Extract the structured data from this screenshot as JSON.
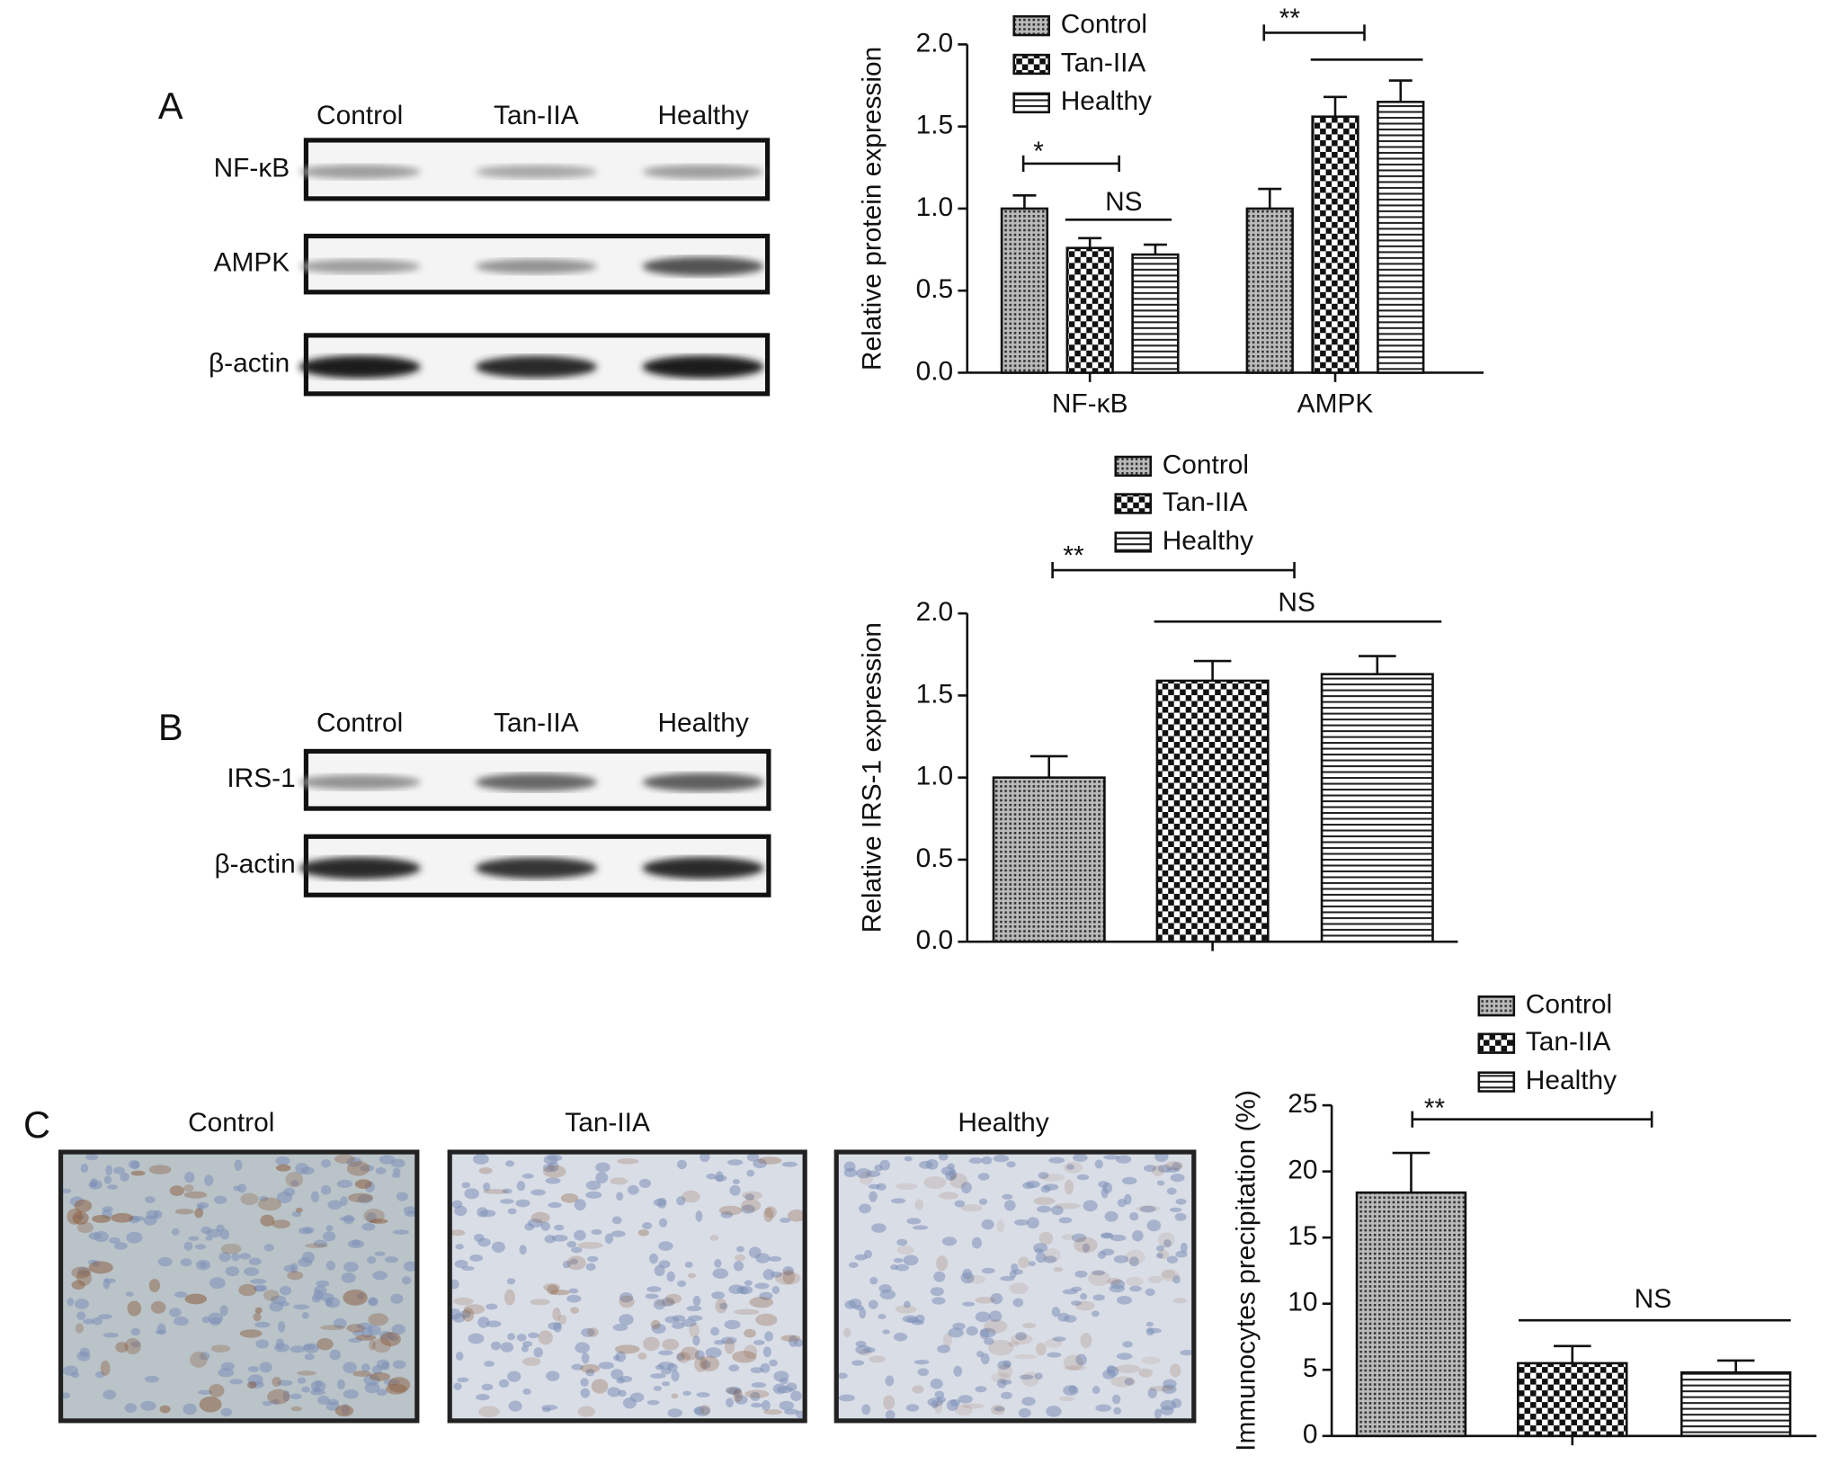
{
  "blots": [
    {
      "panel": "A",
      "lanes": [
        "Control",
        "Tan-IIA",
        "Healthy"
      ],
      "rows": [
        "NF-κB",
        "AMPK",
        "β-actin"
      ]
    },
    {
      "panel": "B",
      "lanes": [
        "Control",
        "Tan-IIA",
        "Healthy"
      ],
      "rows": [
        "IRS-1",
        "β-actin"
      ]
    }
  ],
  "histology": {
    "panel": "C",
    "images": [
      "Control",
      "Tan-IIA",
      "Healthy"
    ]
  },
  "chart_data": [
    {
      "type": "bar",
      "y_label": "Relative protein expression",
      "categories": [
        "NF-κB",
        "AMPK"
      ],
      "series": [
        {
          "name": "Control",
          "pattern": "dots",
          "values": [
            1.0,
            1.0
          ],
          "errors": [
            0.08,
            0.12
          ]
        },
        {
          "name": "Tan-IIA",
          "pattern": "checker",
          "values": [
            0.76,
            1.56
          ],
          "errors": [
            0.06,
            0.12
          ]
        },
        {
          "name": "Healthy",
          "pattern": "lines",
          "values": [
            0.72,
            1.65
          ],
          "errors": [
            0.06,
            0.13
          ]
        }
      ],
      "ylim": [
        0,
        2
      ],
      "yticks": [
        {
          "value": 0,
          "label": "0.0"
        },
        {
          "value": 0.5,
          "label": "0.5"
        },
        {
          "value": 1,
          "label": "1.0"
        },
        {
          "value": 1.5,
          "label": "1.5"
        },
        {
          "value": 2,
          "label": "2.0"
        }
      ],
      "annotations": [
        "*",
        "NS",
        "**"
      ]
    },
    {
      "type": "bar",
      "y_label": "Relative IRS-1 expression",
      "categories": [
        null
      ],
      "series": [
        {
          "name": "Control",
          "pattern": "dots",
          "values": [
            1.0
          ],
          "errors": [
            0.13
          ]
        },
        {
          "name": "Tan-IIA",
          "pattern": "checker",
          "values": [
            1.59
          ],
          "errors": [
            0.12
          ]
        },
        {
          "name": "Healthy",
          "pattern": "lines",
          "values": [
            1.63
          ],
          "errors": [
            0.11
          ]
        }
      ],
      "ylim": [
        0,
        2
      ],
      "yticks": [
        {
          "value": 0,
          "label": "0.0"
        },
        {
          "value": 0.5,
          "label": "0.5"
        },
        {
          "value": 1,
          "label": "1.0"
        },
        {
          "value": 1.5,
          "label": "1.5"
        },
        {
          "value": 2,
          "label": "2.0"
        }
      ],
      "annotations": [
        "**",
        "NS"
      ]
    },
    {
      "type": "bar",
      "y_label": "Immunocytes precipitation (%)",
      "categories": [
        null
      ],
      "series": [
        {
          "name": "Control",
          "pattern": "dots",
          "values": [
            18.4
          ],
          "errors": [
            3.0
          ]
        },
        {
          "name": "Tan-IIA",
          "pattern": "checker",
          "values": [
            5.5
          ],
          "errors": [
            1.3
          ]
        },
        {
          "name": "Healthy",
          "pattern": "lines",
          "values": [
            4.8
          ],
          "errors": [
            0.9
          ]
        }
      ],
      "ylim": [
        0,
        25
      ],
      "yticks": [
        0,
        5,
        10,
        15,
        20,
        25
      ],
      "annotations": [
        "**",
        "NS"
      ]
    }
  ]
}
